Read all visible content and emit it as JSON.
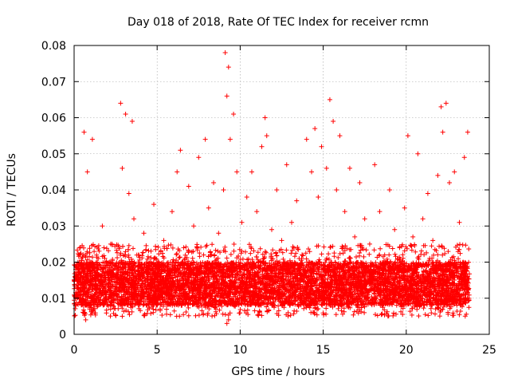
{
  "chart_data": {
    "type": "scatter",
    "title": "Day 018 of 2018, Rate Of TEC Index for receiver rcmn",
    "xlabel": "GPS time / hours",
    "ylabel": "ROTI / TECUs",
    "xlim": [
      0,
      25
    ],
    "ylim": [
      0,
      0.08
    ],
    "xticks": [
      0,
      5,
      10,
      15,
      20,
      25
    ],
    "xtick_labels": [
      "0",
      "5",
      "10",
      "15",
      "20",
      "25"
    ],
    "yticks": [
      0,
      0.01,
      0.02,
      0.03,
      0.04,
      0.05,
      0.06,
      0.07,
      0.08
    ],
    "ytick_labels": [
      "0",
      "0.01",
      "0.02",
      "0.03",
      "0.04",
      "0.05",
      "0.06",
      "0.07",
      "0.08"
    ],
    "grid": true,
    "marker": "+",
    "marker_color": "#ff0000",
    "series": [
      {
        "name": "ROTI",
        "x": [
          0.1,
          0.3,
          0.5,
          0.6,
          0.8,
          1.0,
          1.1,
          1.4,
          1.7,
          2.0,
          2.2,
          2.5,
          2.8,
          2.9,
          3.1,
          3.3,
          3.5,
          3.6,
          3.9,
          4.2,
          4.5,
          4.8,
          5.1,
          5.4,
          5.6,
          5.9,
          6.2,
          6.4,
          6.6,
          6.9,
          7.2,
          7.5,
          7.8,
          7.9,
          8.1,
          8.4,
          8.7,
          9.0,
          9.1,
          9.2,
          9.3,
          9.4,
          9.6,
          9.8,
          10.1,
          10.4,
          10.7,
          11.0,
          11.3,
          11.5,
          11.6,
          11.9,
          12.2,
          12.5,
          12.8,
          13.1,
          13.4,
          13.7,
          14.0,
          14.3,
          14.5,
          14.7,
          14.9,
          15.2,
          15.4,
          15.6,
          15.8,
          16.0,
          16.3,
          16.6,
          16.9,
          17.2,
          17.5,
          17.8,
          18.1,
          18.4,
          18.7,
          19.0,
          19.3,
          19.6,
          19.9,
          20.1,
          20.4,
          20.7,
          21.0,
          21.3,
          21.6,
          21.9,
          22.1,
          22.2,
          22.4,
          22.6,
          22.9,
          23.2,
          23.5,
          23.7,
          0.7,
          2.9,
          9.2,
          9.3
        ],
        "y": [
          0.018,
          0.022,
          0.014,
          0.056,
          0.045,
          0.02,
          0.054,
          0.016,
          0.03,
          0.019,
          0.025,
          0.016,
          0.064,
          0.046,
          0.061,
          0.039,
          0.059,
          0.032,
          0.022,
          0.028,
          0.017,
          0.036,
          0.02,
          0.026,
          0.019,
          0.034,
          0.045,
          0.051,
          0.024,
          0.041,
          0.03,
          0.049,
          0.022,
          0.054,
          0.035,
          0.042,
          0.028,
          0.04,
          0.078,
          0.066,
          0.074,
          0.054,
          0.061,
          0.045,
          0.031,
          0.038,
          0.045,
          0.034,
          0.052,
          0.06,
          0.055,
          0.029,
          0.04,
          0.026,
          0.047,
          0.031,
          0.037,
          0.021,
          0.054,
          0.045,
          0.057,
          0.038,
          0.052,
          0.046,
          0.065,
          0.059,
          0.04,
          0.055,
          0.034,
          0.046,
          0.027,
          0.042,
          0.032,
          0.025,
          0.047,
          0.034,
          0.022,
          0.04,
          0.029,
          0.024,
          0.035,
          0.055,
          0.027,
          0.05,
          0.032,
          0.039,
          0.026,
          0.044,
          0.063,
          0.056,
          0.064,
          0.042,
          0.045,
          0.031,
          0.049,
          0.056,
          0.004,
          0.005,
          0.003,
          0.004
        ]
      }
    ],
    "dense_band": {
      "x_range": [
        0,
        23.8
      ],
      "y_range": [
        0.005,
        0.025
      ],
      "core_range": [
        0.008,
        0.02
      ],
      "point_count": 7000
    }
  }
}
